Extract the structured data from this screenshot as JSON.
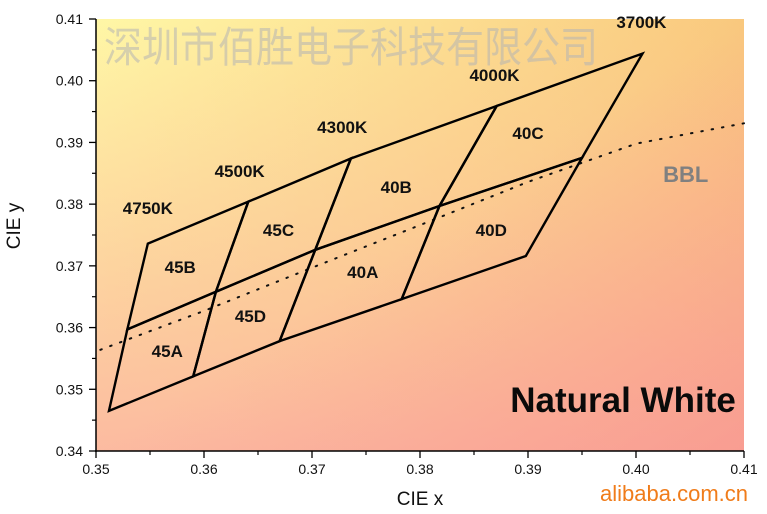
{
  "chart_data": {
    "type": "line",
    "title": "",
    "xlabel": "CIE x",
    "ylabel": "CIE y",
    "xlim": [
      0.35,
      0.41
    ],
    "ylim": [
      0.34,
      0.41
    ],
    "grid": false,
    "xticks": [
      "0.35",
      "0.36",
      "0.37",
      "0.38",
      "0.39",
      "0.40",
      "0.41"
    ],
    "yticks": [
      "0.34",
      "0.35",
      "0.36",
      "0.37",
      "0.38",
      "0.39",
      "0.40",
      "0.41"
    ],
    "bins": [
      {
        "name": "45A",
        "points": [
          [
            0.3512,
            0.3465
          ],
          [
            0.3529,
            0.3597
          ],
          [
            0.3611,
            0.3658
          ],
          [
            0.359,
            0.3521
          ]
        ],
        "label_at": [
          0.3566,
          0.3562
        ]
      },
      {
        "name": "45B",
        "points": [
          [
            0.3529,
            0.3597
          ],
          [
            0.3548,
            0.3736
          ],
          [
            0.3641,
            0.3804
          ],
          [
            0.3611,
            0.3658
          ]
        ],
        "label_at": [
          0.3578,
          0.3698
        ]
      },
      {
        "name": "45C",
        "points": [
          [
            0.3611,
            0.3658
          ],
          [
            0.3641,
            0.3804
          ],
          [
            0.3736,
            0.3874
          ],
          [
            0.3703,
            0.3726
          ]
        ],
        "label_at": [
          0.3669,
          0.3758
        ]
      },
      {
        "name": "45D",
        "points": [
          [
            0.359,
            0.3521
          ],
          [
            0.3611,
            0.3658
          ],
          [
            0.3703,
            0.3726
          ],
          [
            0.367,
            0.3578
          ]
        ],
        "label_at": [
          0.3643,
          0.3619
        ]
      },
      {
        "name": "40A",
        "points": [
          [
            0.367,
            0.3578
          ],
          [
            0.3703,
            0.3726
          ],
          [
            0.3818,
            0.3797
          ],
          [
            0.3783,
            0.3646
          ]
        ],
        "label_at": [
          0.3747,
          0.369
        ]
      },
      {
        "name": "40B",
        "points": [
          [
            0.3703,
            0.3726
          ],
          [
            0.3736,
            0.3874
          ],
          [
            0.3871,
            0.3959
          ],
          [
            0.3818,
            0.3797
          ]
        ],
        "label_at": [
          0.3778,
          0.3828
        ]
      },
      {
        "name": "40C",
        "points": [
          [
            0.3818,
            0.3797
          ],
          [
            0.3871,
            0.3959
          ],
          [
            0.4006,
            0.4044
          ],
          [
            0.395,
            0.3875
          ]
        ],
        "label_at": [
          0.39,
          0.3915
        ]
      },
      {
        "name": "40D",
        "points": [
          [
            0.3783,
            0.3646
          ],
          [
            0.3818,
            0.3797
          ],
          [
            0.395,
            0.3875
          ],
          [
            0.3898,
            0.3716
          ]
        ],
        "label_at": [
          0.3866,
          0.3758
        ]
      }
    ],
    "cct_labels": [
      {
        "text": "4750K",
        "at": [
          0.3548,
          0.3794
        ]
      },
      {
        "text": "4500K",
        "at": [
          0.3633,
          0.3854
        ]
      },
      {
        "text": "4300K",
        "at": [
          0.3728,
          0.3925
        ]
      },
      {
        "text": "4000K",
        "at": [
          0.3869,
          0.4009
        ]
      },
      {
        "text": "3700K",
        "at": [
          0.4005,
          0.4095
        ]
      }
    ],
    "bbl": {
      "label": "BBL",
      "label_at": [
        0.4046,
        0.3849
      ],
      "points": [
        [
          0.3504,
          0.3564
        ],
        [
          0.36,
          0.3627
        ],
        [
          0.37,
          0.3697
        ],
        [
          0.38,
          0.3766
        ],
        [
          0.39,
          0.3836
        ],
        [
          0.4,
          0.3898
        ],
        [
          0.41,
          0.3931
        ]
      ]
    },
    "annotation": {
      "text": "Natural White",
      "at": [
        0.3988,
        0.3483
      ]
    }
  },
  "watermark": "深圳市佰胜电子科技有限公司",
  "site": "alibaba.com.cn"
}
